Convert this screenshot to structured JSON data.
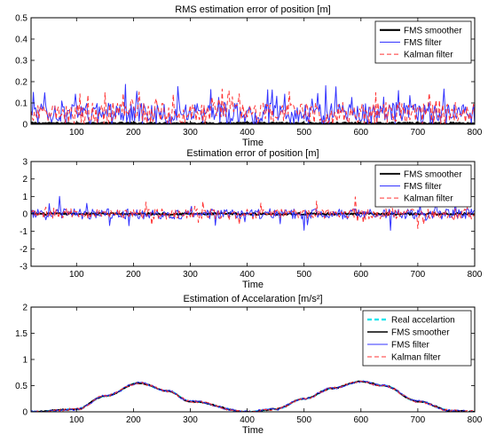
{
  "chart_data": [
    {
      "type": "line",
      "title": "RMS estimation error of position [m]",
      "xlabel": "Time",
      "ylabel": "",
      "xlim": [
        20,
        800
      ],
      "ylim": [
        0,
        0.5
      ],
      "xticks": [
        "100",
        "200",
        "300",
        "400",
        "500",
        "600",
        "700",
        "800"
      ],
      "yticks": [
        "0",
        "0.1",
        "0.2",
        "0.3",
        "0.4",
        "0.5"
      ],
      "grid": false,
      "legend": "top-right",
      "series": [
        {
          "name": "FMS smoother",
          "color": "#000000",
          "style": "solid",
          "width": 2.2,
          "approx": {
            "base": 0.004,
            "noise": 0.004
          }
        },
        {
          "name": "FMS filter",
          "color": "#3333ff",
          "style": "solid",
          "width": 1.0,
          "approx": {
            "base": 0.05,
            "noise": 0.05,
            "spike": 0.1
          }
        },
        {
          "name": "Kalman filter",
          "color": "#ff3333",
          "style": "dashed",
          "width": 1.0,
          "approx": {
            "base": 0.05,
            "noise": 0.05,
            "spike": 0.1
          }
        }
      ]
    },
    {
      "type": "line",
      "title": "Estimation error of position [m]",
      "xlabel": "Time",
      "ylabel": "",
      "xlim": [
        20,
        800
      ],
      "ylim": [
        -3,
        3
      ],
      "xticks": [
        "100",
        "200",
        "300",
        "400",
        "500",
        "600",
        "700",
        "800"
      ],
      "yticks": [
        "-3",
        "-2",
        "-1",
        "0",
        "1",
        "2",
        "3"
      ],
      "grid": false,
      "legend": "top-right",
      "series": [
        {
          "name": "FMS smoother",
          "color": "#000000",
          "style": "solid",
          "width": 1.8,
          "approx": {
            "base": 0,
            "noise": 0.06
          }
        },
        {
          "name": "FMS filter",
          "color": "#3333ff",
          "style": "solid",
          "width": 1.0,
          "approx": {
            "base": 0,
            "noise": 0.3,
            "spike": 0.8
          }
        },
        {
          "name": "Kalman filter",
          "color": "#ff3333",
          "style": "dashed",
          "width": 1.0,
          "approx": {
            "base": 0,
            "noise": 0.3,
            "spike": 0.8
          }
        }
      ]
    },
    {
      "type": "line",
      "title": "Estimation of Accelaration [m/s²]",
      "xlabel": "Time",
      "ylabel": "",
      "xlim": [
        20,
        800
      ],
      "ylim": [
        0,
        2
      ],
      "xticks": [
        "100",
        "200",
        "300",
        "400",
        "500",
        "600",
        "700",
        "800"
      ],
      "yticks": [
        "0",
        "0.5",
        "1",
        "1.5",
        "2"
      ],
      "grid": false,
      "legend": "top-right",
      "signal": {
        "x": [
          20,
          100,
          150,
          210,
          260,
          300,
          400,
          450,
          500,
          550,
          600,
          640,
          700,
          760,
          800
        ],
        "y": [
          0.0,
          0.05,
          0.3,
          0.55,
          0.4,
          0.2,
          0.0,
          0.05,
          0.25,
          0.45,
          0.58,
          0.5,
          0.2,
          0.02,
          0.0
        ]
      },
      "series": [
        {
          "name": "Real accelartion",
          "color": "#00e5ee",
          "style": "dashed",
          "width": 2.2,
          "approx": {
            "noise": 0
          }
        },
        {
          "name": "FMS smoother",
          "color": "#000000",
          "style": "solid",
          "width": 1.6,
          "approx": {
            "noise": 0.012
          }
        },
        {
          "name": "FMS filter",
          "color": "#3333ff",
          "style": "solid",
          "width": 0.9,
          "approx": {
            "noise": 0.025
          }
        },
        {
          "name": "Kalman filter",
          "color": "#ff3333",
          "style": "dashed",
          "width": 0.9,
          "approx": {
            "noise": 0.025
          }
        }
      ]
    }
  ]
}
